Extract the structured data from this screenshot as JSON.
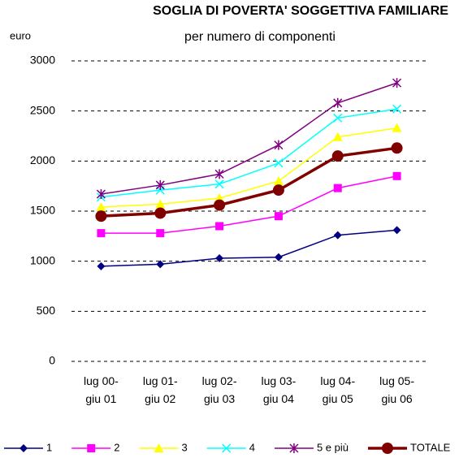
{
  "chart_data": {
    "type": "line",
    "title": "SOGLIA DI POVERTA' SOGGETTIVA FAMILIARE",
    "subtitle": "per numero di componenti",
    "y_label": "euro",
    "categories": [
      "lug 00-\ngiu 01",
      "lug 01-\ngiu 02",
      "lug 02-\ngiu 03",
      "lug 03-\ngiu 04",
      "lug 04-\ngiu 05",
      "lug 05-\ngiu 06"
    ],
    "series": [
      {
        "name": "1",
        "color": "#000080",
        "marker": "diamond",
        "values": [
          950,
          970,
          1030,
          1040,
          1260,
          1310
        ]
      },
      {
        "name": "2",
        "color": "#ff00ff",
        "marker": "square",
        "values": [
          1280,
          1280,
          1350,
          1450,
          1730,
          1850
        ]
      },
      {
        "name": "3",
        "color": "#ffff00",
        "marker": "triangle",
        "values": [
          1540,
          1570,
          1630,
          1800,
          2240,
          2330
        ]
      },
      {
        "name": "4",
        "color": "#00ffff",
        "marker": "x",
        "values": [
          1640,
          1710,
          1770,
          1980,
          2430,
          2520
        ]
      },
      {
        "name": "5 e più",
        "color": "#800080",
        "marker": "star",
        "values": [
          1670,
          1760,
          1870,
          2160,
          2580,
          2780
        ]
      },
      {
        "name": "TOTALE",
        "color": "#800000",
        "marker": "circle",
        "values": [
          1450,
          1480,
          1560,
          1710,
          2050,
          2130
        ]
      }
    ],
    "ylim": [
      0,
      3000
    ],
    "yticks": [
      0,
      500,
      1000,
      1500,
      2000,
      2500,
      3000
    ],
    "grid": true,
    "legend": "bottom"
  }
}
